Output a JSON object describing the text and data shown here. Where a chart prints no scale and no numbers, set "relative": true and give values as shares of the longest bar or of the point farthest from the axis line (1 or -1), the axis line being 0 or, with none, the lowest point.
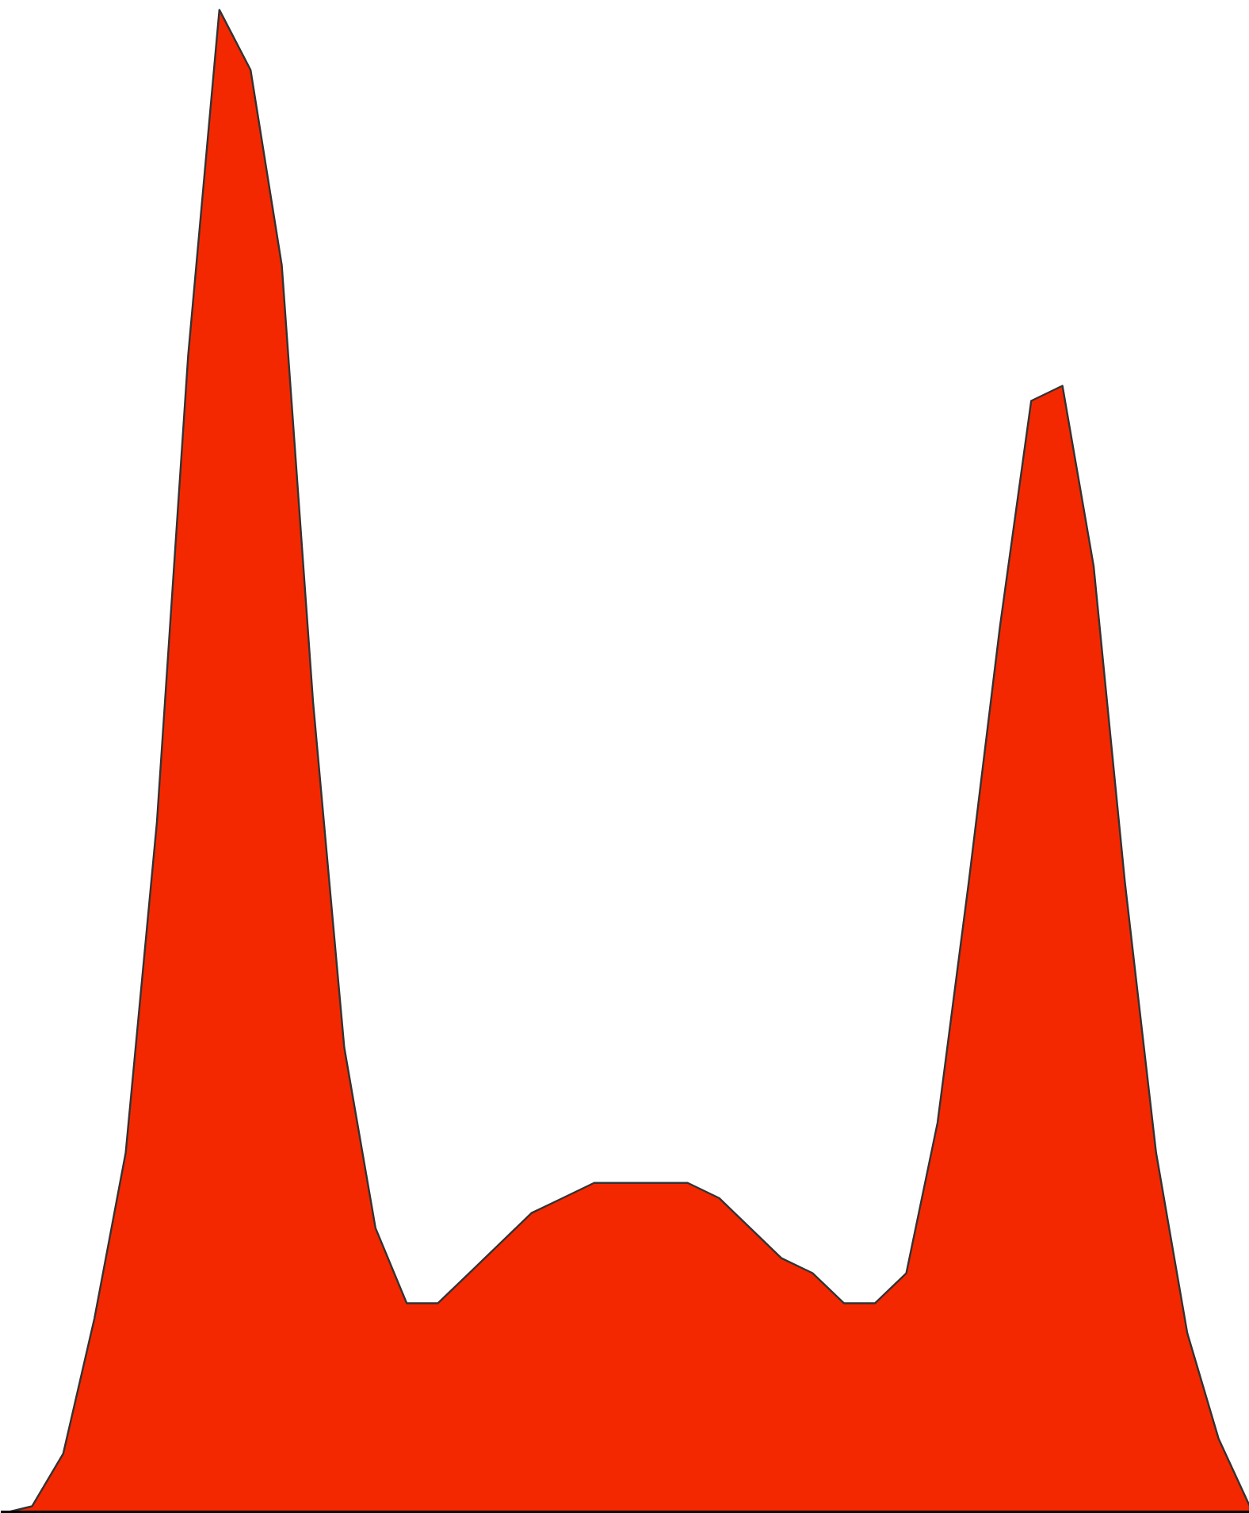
{
  "chart_data": {
    "type": "area",
    "relative": true,
    "color": "#f42800",
    "categories": [
      null,
      null,
      null,
      null,
      null,
      null,
      null,
      null,
      null,
      null,
      null,
      null,
      null,
      null,
      null,
      null,
      null,
      null,
      null,
      null,
      null,
      null,
      null,
      null,
      null,
      null,
      null,
      null,
      null,
      null,
      null,
      null,
      null,
      null,
      null,
      null,
      null,
      null,
      null,
      null,
      null
    ],
    "values": [
      0,
      0.005,
      0.04,
      0.13,
      0.24,
      0.46,
      0.77,
      1.0,
      0.96,
      0.83,
      0.54,
      0.31,
      0.19,
      0.14,
      0.14,
      0.16,
      0.18,
      0.2,
      0.21,
      0.22,
      0.22,
      0.22,
      0.22,
      0.21,
      0.19,
      0.17,
      0.16,
      0.14,
      0.14,
      0.16,
      0.26,
      0.42,
      0.59,
      0.74,
      0.75,
      0.63,
      0.42,
      0.24,
      0.12,
      0.05,
      0.005
    ]
  }
}
